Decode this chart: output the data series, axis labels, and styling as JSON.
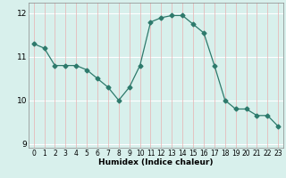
{
  "x": [
    0,
    1,
    2,
    3,
    4,
    5,
    6,
    7,
    8,
    9,
    10,
    11,
    12,
    13,
    14,
    15,
    16,
    17,
    18,
    19,
    20,
    21,
    22,
    23
  ],
  "y": [
    11.3,
    11.2,
    10.8,
    10.8,
    10.8,
    10.7,
    10.5,
    10.3,
    10.0,
    10.3,
    10.8,
    11.8,
    11.9,
    11.95,
    11.95,
    11.75,
    11.55,
    10.8,
    10.0,
    9.8,
    9.8,
    9.65,
    9.65,
    9.4
  ],
  "line_color": "#2d7a6c",
  "marker": "D",
  "marker_size": 2.5,
  "bg_color": "#d8f0ec",
  "vgrid_color": "#e8b0b0",
  "hgrid_color": "#ffffff",
  "xlabel": "Humidex (Indice chaleur)",
  "ylim": [
    8.9,
    12.25
  ],
  "xlim": [
    -0.5,
    23.5
  ],
  "yticks": [
    9,
    10,
    11,
    12
  ],
  "xticks": [
    0,
    1,
    2,
    3,
    4,
    5,
    6,
    7,
    8,
    9,
    10,
    11,
    12,
    13,
    14,
    15,
    16,
    17,
    18,
    19,
    20,
    21,
    22,
    23
  ]
}
